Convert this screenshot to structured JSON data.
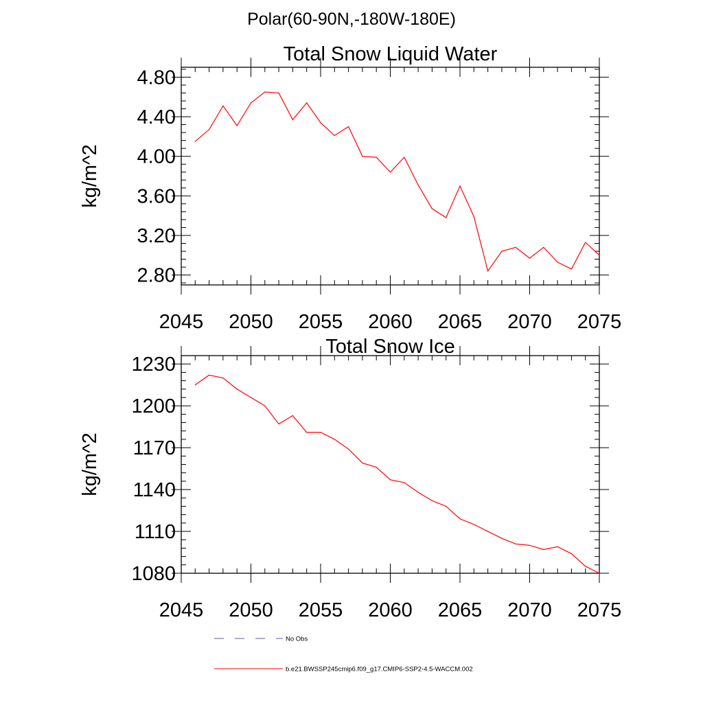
{
  "page_title": "Polar(60-90N,-180W-180E)",
  "legend": [
    {
      "label": "No Obs",
      "color": "#5a5aa0",
      "dash": "dashed"
    },
    {
      "label": "b.e21.BWSSP245cmip6.f09_g17.CMIP6-SSP2-4.5-WACCM.002",
      "color": "#ff0000",
      "dash": "solid"
    }
  ],
  "chart_data": [
    {
      "type": "line",
      "title": "Total Snow Liquid Water",
      "xlabel": "",
      "ylabel": "kg/m^2",
      "xlim": [
        2045,
        2075
      ],
      "ylim": [
        2.7,
        4.9
      ],
      "xticks": [
        "2045",
        "2050",
        "2055",
        "2060",
        "2065",
        "2070",
        "2075"
      ],
      "yticks": [
        "2.80",
        "3.20",
        "3.60",
        "4.00",
        "4.40",
        "4.80"
      ],
      "x": [
        2046,
        2047,
        2048,
        2049,
        2050,
        2051,
        2052,
        2053,
        2054,
        2055,
        2056,
        2057,
        2058,
        2059,
        2060,
        2061,
        2062,
        2063,
        2064,
        2065,
        2066,
        2067,
        2068,
        2069,
        2070,
        2071,
        2072,
        2073,
        2074,
        2075
      ],
      "series": [
        {
          "color": "#ff0000",
          "values": [
            4.15,
            4.27,
            4.51,
            4.31,
            4.54,
            4.65,
            4.64,
            4.37,
            4.54,
            4.34,
            4.21,
            4.3,
            4.0,
            3.99,
            3.84,
            3.99,
            3.71,
            3.47,
            3.38,
            3.7,
            3.39,
            2.84,
            3.04,
            3.08,
            2.97,
            3.08,
            2.93,
            2.86,
            3.13,
            3.0
          ]
        }
      ]
    },
    {
      "type": "line",
      "title": "Total Snow Ice",
      "xlabel": "",
      "ylabel": "kg/m^2",
      "xlim": [
        2045,
        2075
      ],
      "ylim": [
        1080,
        1236
      ],
      "xticks": [
        "2045",
        "2050",
        "2055",
        "2060",
        "2065",
        "2070",
        "2075"
      ],
      "yticks": [
        "1080",
        "1110",
        "1140",
        "1170",
        "1200",
        "1230"
      ],
      "x": [
        2046,
        2047,
        2048,
        2049,
        2050,
        2051,
        2052,
        2053,
        2054,
        2055,
        2056,
        2057,
        2058,
        2059,
        2060,
        2061,
        2062,
        2063,
        2064,
        2065,
        2066,
        2067,
        2068,
        2069,
        2070,
        2071,
        2072,
        2073,
        2074,
        2075
      ],
      "series": [
        {
          "color": "#ff0000",
          "values": [
            1215,
            1222,
            1220,
            1212,
            1206,
            1200,
            1187,
            1193,
            1181,
            1181,
            1176,
            1169,
            1159,
            1156,
            1147,
            1145,
            1138,
            1132,
            1128,
            1119,
            1115,
            1110,
            1105,
            1101,
            1100,
            1097,
            1099,
            1094,
            1085,
            1080
          ]
        }
      ]
    }
  ]
}
